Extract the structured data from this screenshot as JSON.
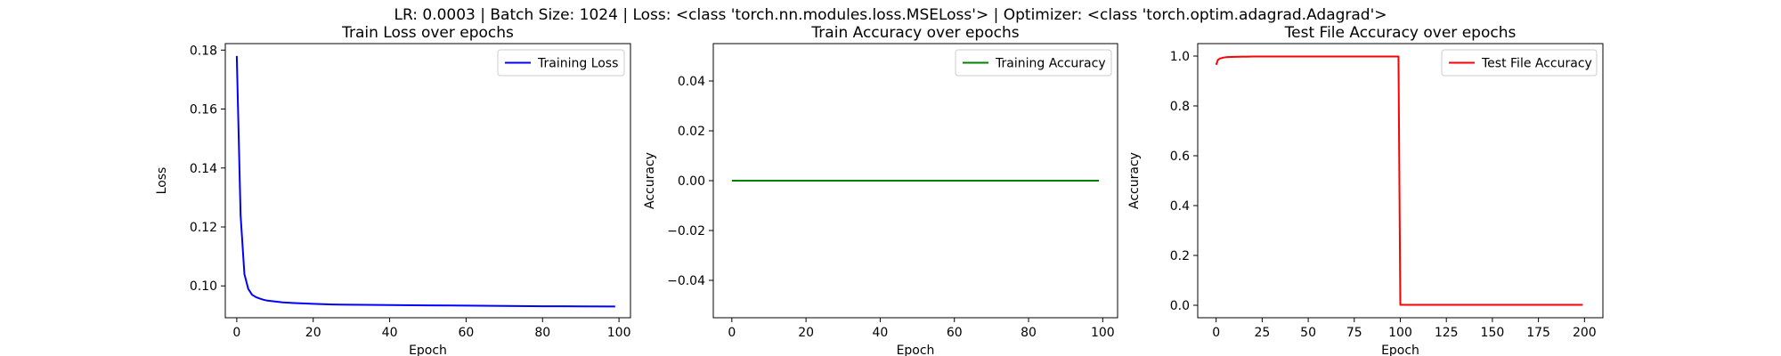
{
  "suptitle": "LR: 0.0003 | Batch Size: 1024 | Loss: <class 'torch.nn.modules.loss.MSELoss'> | Optimizer: <class 'torch.optim.adagrad.Adagrad'>",
  "chart_data": [
    {
      "type": "line",
      "title": "Train Loss over epochs",
      "xlabel": "Epoch",
      "ylabel": "Loss",
      "xlim": [
        -3,
        103
      ],
      "ylim": [
        0.0892,
        0.1822
      ],
      "xticks": [
        0,
        20,
        40,
        60,
        80,
        100
      ],
      "yticks": [
        0.1,
        0.12,
        0.14,
        0.16,
        0.18
      ],
      "ytick_labels": [
        "0.10",
        "0.12",
        "0.14",
        "0.16",
        "0.18"
      ],
      "legend": "upper right",
      "series": [
        {
          "name": "Training Loss",
          "color": "#0000ff",
          "x": [
            0,
            1,
            2,
            3,
            4,
            5,
            6,
            7,
            8,
            10,
            12,
            15,
            20,
            25,
            30,
            40,
            50,
            60,
            70,
            80,
            90,
            99
          ],
          "y": [
            0.178,
            0.124,
            0.104,
            0.099,
            0.097,
            0.0962,
            0.0957,
            0.0953,
            0.095,
            0.0947,
            0.0944,
            0.0942,
            0.0939,
            0.0937,
            0.0936,
            0.0935,
            0.0934,
            0.0933,
            0.0932,
            0.0931,
            0.09305,
            0.093
          ]
        }
      ]
    },
    {
      "type": "line",
      "title": "Train Accuracy over epochs",
      "xlabel": "Epoch",
      "ylabel": "Accuracy",
      "xlim": [
        -5,
        104
      ],
      "ylim": [
        -0.055,
        0.055
      ],
      "xticks": [
        0,
        20,
        40,
        60,
        80,
        100
      ],
      "yticks": [
        -0.04,
        -0.02,
        0.0,
        0.02,
        0.04
      ],
      "ytick_labels": [
        "−0.04",
        "−0.02",
        "0.00",
        "0.02",
        "0.04"
      ],
      "legend": "upper right",
      "series": [
        {
          "name": "Training Accuracy",
          "color": "#008000",
          "x": [
            0,
            99
          ],
          "y": [
            0,
            0
          ]
        }
      ]
    },
    {
      "type": "line",
      "title": "Test File Accuracy over epochs",
      "xlabel": "Epoch",
      "ylabel": "Accuracy",
      "xlim": [
        -10,
        210
      ],
      "ylim": [
        -0.05,
        1.05
      ],
      "xticks": [
        0,
        25,
        50,
        75,
        100,
        125,
        150,
        175,
        200
      ],
      "yticks": [
        0.0,
        0.2,
        0.4,
        0.6,
        0.8,
        1.0
      ],
      "ytick_labels": [
        "0.0",
        "0.2",
        "0.4",
        "0.6",
        "0.8",
        "1.0"
      ],
      "legend": "upper right",
      "series": [
        {
          "name": "Test File Accuracy",
          "color": "#ff0000",
          "x": [
            0,
            1,
            2,
            4,
            6,
            10,
            20,
            50,
            99,
            100,
            101,
            150,
            199
          ],
          "y": [
            0.965,
            0.985,
            0.99,
            0.994,
            0.996,
            0.997,
            0.998,
            0.998,
            0.998,
            0.002,
            0.002,
            0.002,
            0.002
          ]
        }
      ]
    }
  ]
}
